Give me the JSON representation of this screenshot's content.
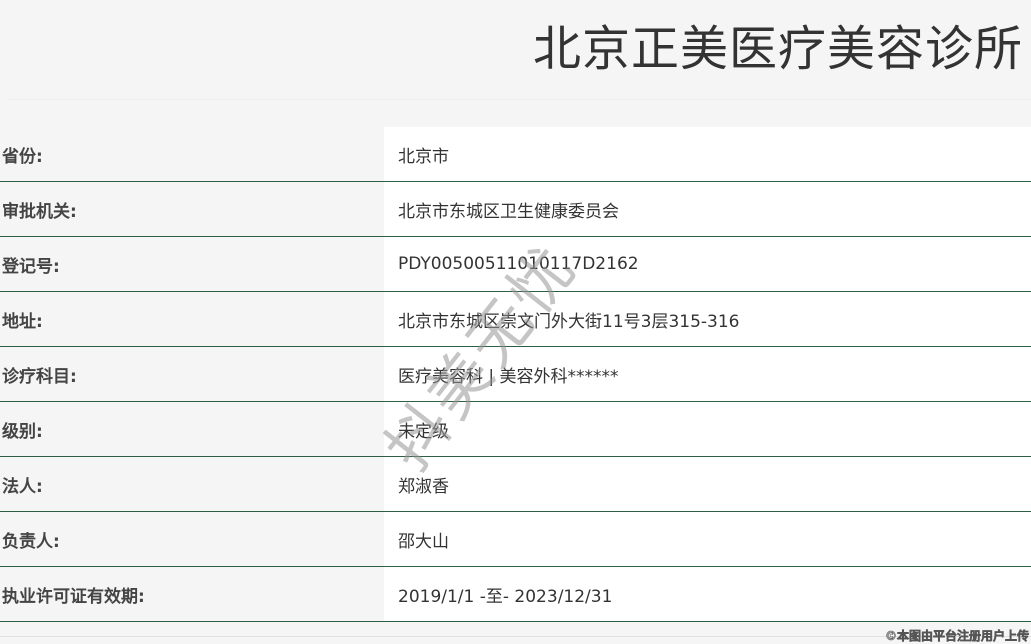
{
  "title": "北京正美医疗美容诊所",
  "rows": [
    {
      "label": "省份:",
      "value": "北京市"
    },
    {
      "label": "审批机关:",
      "value": "北京市东城区卫生健康委员会"
    },
    {
      "label": "登记号:",
      "value": "PDY00500511010117D2162"
    },
    {
      "label": "地址:",
      "value": "北京市东城区崇文门外大街11号3层315-316"
    },
    {
      "label": "诊疗科目:",
      "value": "医疗美容科 | 美容外科******"
    },
    {
      "label": "级别:",
      "value": "未定级"
    },
    {
      "label": "法人:",
      "value": "郑淑香"
    },
    {
      "label": "负责人:",
      "value": "邵大山"
    },
    {
      "label": "执业许可证有效期:",
      "value": "2019/1/1 -至- 2023/12/31"
    }
  ],
  "watermark": "抖美无忧",
  "footer_watermark": "©本图由平台注册用户上传"
}
